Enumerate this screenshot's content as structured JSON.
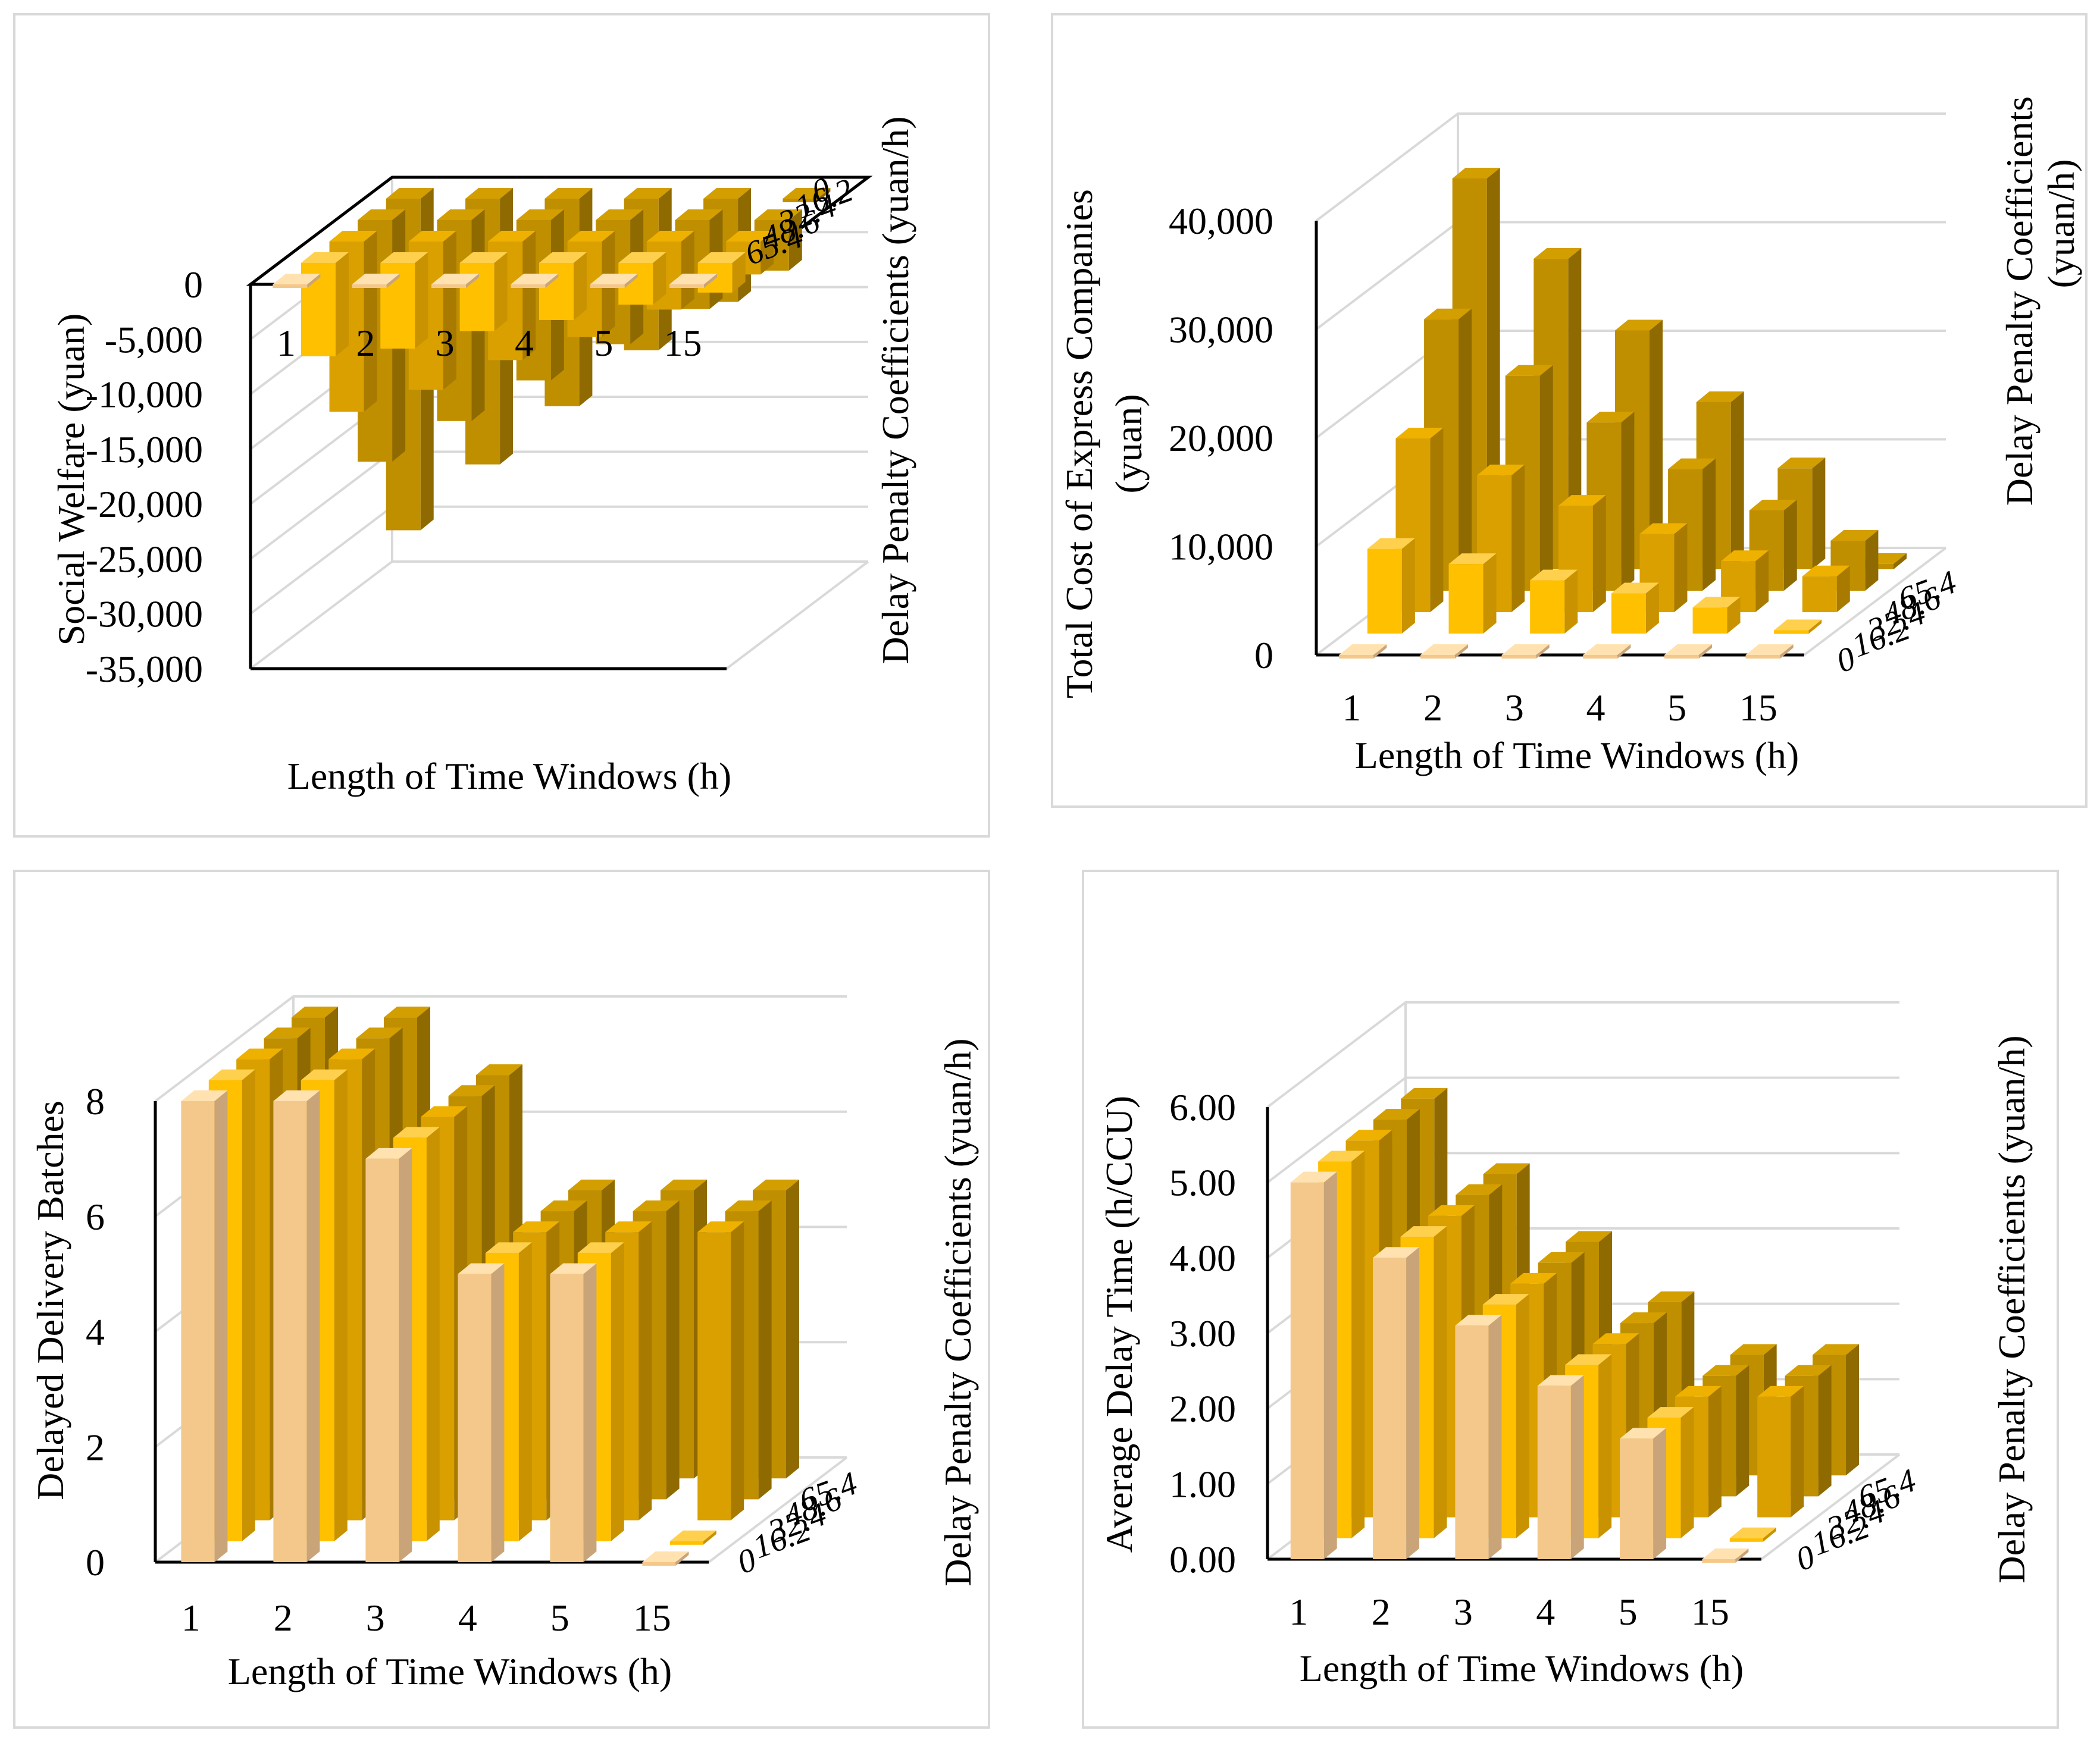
{
  "colors": {
    "s0": [
      "#FFE2B0",
      "#F4C88A",
      "#C9A479"
    ],
    "s1": [
      "#FFD04D",
      "#FFC000",
      "#C99200"
    ],
    "s2": [
      "#EFB100",
      "#D9A000",
      "#A87B00"
    ],
    "s3": [
      "#D39E00",
      "#BF8F00",
      "#8F6A00"
    ]
  },
  "chart_data": [
    {
      "id": "social-welfare",
      "type": "bar3d",
      "title": "",
      "xlabel": "Length of Time Windows (h)",
      "ylabel": "Social Welfare (yuan)",
      "zlabel": "Delay Penalty Coefficients (yuan/h)",
      "categories": [
        "1",
        "2",
        "3",
        "4",
        "5",
        "15"
      ],
      "series_labels": [
        "0",
        "16.2",
        "32.4",
        "48.6",
        "65.4"
      ],
      "ylim": [
        -35000,
        0
      ],
      "yticks": [
        "0",
        "-5,000",
        "-10,000",
        "-15,000",
        "-20,000",
        "-25,000",
        "-30,000",
        "-35,000"
      ],
      "series": [
        {
          "name": "0",
          "values": [
            0,
            0,
            0,
            0,
            0,
            0
          ]
        },
        {
          "name": "16.2",
          "values": [
            -8500,
            -7800,
            -6200,
            -5200,
            -3800,
            -2700
          ]
        },
        {
          "name": "32.4",
          "values": [
            -15500,
            -13500,
            -10800,
            -8700,
            -6200,
            -3000
          ]
        },
        {
          "name": "48.6",
          "values": [
            -22000,
            -18300,
            -14600,
            -11300,
            -8100,
            -4600
          ]
        },
        {
          "name": "65.4",
          "values": [
            -30200,
            -24200,
            -18900,
            -13800,
            -9400,
            -300
          ]
        }
      ]
    },
    {
      "id": "total-cost",
      "type": "bar3d",
      "title": "",
      "xlabel": "Length of Time Windows (h)",
      "ylabel": [
        "Total Cost of Express Companies",
        "(yuan)"
      ],
      "zlabel": [
        "Delay Penalty Coefficients",
        "(yuan/h)"
      ],
      "categories": [
        "1",
        "2",
        "3",
        "4",
        "5",
        "15"
      ],
      "series_labels": [
        "0",
        "16.2",
        "32.4",
        "48.6",
        "65.4"
      ],
      "ylim": [
        0,
        40000
      ],
      "yticks": [
        "0",
        "10,000",
        "20,000",
        "30,000",
        "40,000"
      ],
      "series": [
        {
          "name": "0",
          "values": [
            0,
            0,
            0,
            0,
            0,
            0
          ]
        },
        {
          "name": "16.2",
          "values": [
            7800,
            6400,
            4900,
            3700,
            2400,
            300
          ]
        },
        {
          "name": "32.4",
          "values": [
            16000,
            12600,
            9800,
            7200,
            4700,
            3300
          ]
        },
        {
          "name": "48.6",
          "values": [
            25000,
            19800,
            15500,
            11200,
            7400,
            4600
          ]
        },
        {
          "name": "65.4",
          "values": [
            36000,
            28600,
            22000,
            15400,
            9300,
            500
          ]
        }
      ]
    },
    {
      "id": "delayed-batches",
      "type": "bar3d",
      "title": "",
      "xlabel": "Length of Time Windows (h)",
      "ylabel": "Delayed Delivery Batches",
      "zlabel": "Delay Penalty Coefficients (yuan/h)",
      "categories": [
        "1",
        "2",
        "3",
        "4",
        "5",
        "15"
      ],
      "series_labels": [
        "0",
        "16.2",
        "32.4",
        "48.6",
        "65.4"
      ],
      "ylim": [
        0,
        8
      ],
      "yticks": [
        "0",
        "2",
        "4",
        "6",
        "8"
      ],
      "series": [
        {
          "name": "0",
          "values": [
            8,
            8,
            7,
            5,
            5,
            0
          ]
        },
        {
          "name": "16.2",
          "values": [
            8,
            8,
            7,
            5,
            5,
            0
          ]
        },
        {
          "name": "32.4",
          "values": [
            8,
            8,
            7,
            5,
            5,
            5
          ]
        },
        {
          "name": "48.6",
          "values": [
            8,
            8,
            7,
            5,
            5,
            5
          ]
        },
        {
          "name": "65.4",
          "values": [
            8,
            8,
            7,
            5,
            5,
            5
          ]
        }
      ]
    },
    {
      "id": "average-delay",
      "type": "bar3d",
      "title": "",
      "xlabel": "Length of Time Windows (h)",
      "ylabel": "Average Delay Time (h/CCU)",
      "zlabel": "Delay Penalty Coefficients (yuan/h)",
      "categories": [
        "1",
        "2",
        "3",
        "4",
        "5",
        "15"
      ],
      "series_labels": [
        "0",
        "16.2",
        "32.4",
        "48.6",
        "65.4"
      ],
      "ylim": [
        0,
        6
      ],
      "yticks": [
        "0.00",
        "1.00",
        "2.00",
        "3.00",
        "4.00",
        "5.00",
        "6.00"
      ],
      "series": [
        {
          "name": "0",
          "values": [
            5.0,
            4.0,
            3.1,
            2.3,
            1.6,
            0
          ]
        },
        {
          "name": "16.2",
          "values": [
            5.0,
            4.0,
            3.1,
            2.3,
            1.6,
            0
          ]
        },
        {
          "name": "32.4",
          "values": [
            5.0,
            4.0,
            3.1,
            2.3,
            1.6,
            1.6
          ]
        },
        {
          "name": "48.6",
          "values": [
            5.0,
            4.0,
            3.1,
            2.3,
            1.6,
            1.6
          ]
        },
        {
          "name": "65.4",
          "values": [
            5.0,
            4.0,
            3.1,
            2.3,
            1.6,
            1.6
          ]
        }
      ]
    }
  ]
}
